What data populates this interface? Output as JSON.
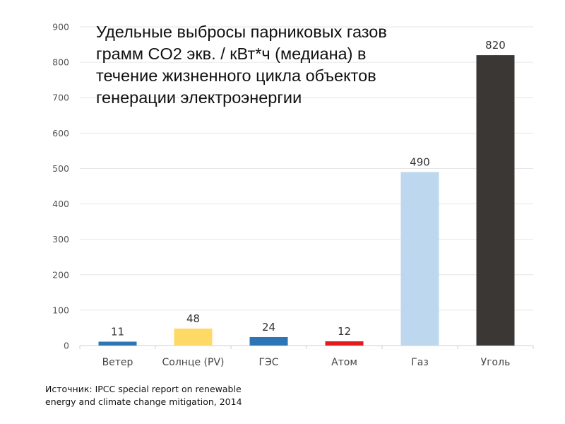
{
  "chart_data": {
    "type": "bar",
    "title_lines": [
      "Удельные выбросы парниковых газов",
      "грамм CO2 экв. / кВт*ч (медиана) в",
      "течение жизненного цикла объектов",
      "генерации электроэнергии"
    ],
    "categories": [
      "Ветер",
      "Солнце (PV)",
      "ГЭС",
      "Атом",
      "Газ",
      "Уголь"
    ],
    "values": [
      11,
      48,
      24,
      12,
      490,
      820
    ],
    "colors": [
      "#2e75b6",
      "#ffd966",
      "#2e75b6",
      "#e41a1c",
      "#bdd7ee",
      "#3b3735"
    ],
    "data_labels": [
      "11",
      "48",
      "24",
      "12",
      "490",
      "820"
    ],
    "ylim": [
      0,
      900
    ],
    "yticks": [
      "0",
      "100",
      "200",
      "300",
      "400",
      "500",
      "600",
      "700",
      "800",
      "900"
    ],
    "grid": true,
    "xlabel": "",
    "ylabel": ""
  },
  "source_lines": [
    "Источник: IPCC special report on renewable",
    "energy and climate change mitigation, 2014"
  ]
}
